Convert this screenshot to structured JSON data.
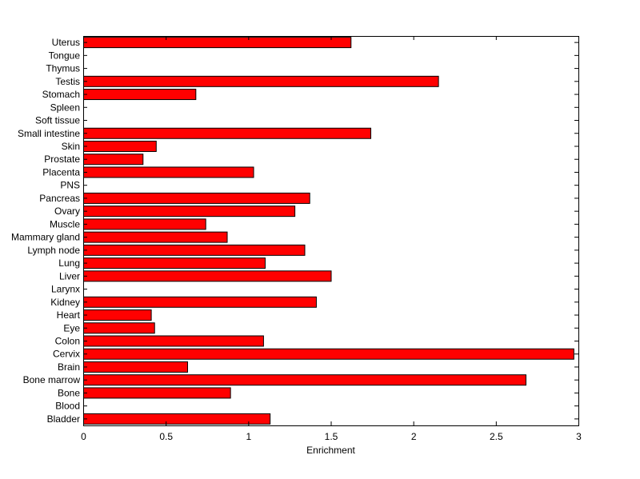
{
  "chart_data": {
    "type": "bar",
    "orientation": "horizontal",
    "title": "",
    "xlabel": "Enrichment",
    "ylabel": "",
    "xlim": [
      0,
      3
    ],
    "xticks": [
      "0",
      "0.5",
      "1",
      "1.5",
      "2",
      "2.5",
      "3"
    ],
    "grid": false,
    "bar_color": "#ff0000",
    "bar_edge_color": "#000000",
    "categories": [
      "Uterus",
      "Tongue",
      "Thymus",
      "Testis",
      "Stomach",
      "Spleen",
      "Soft tissue",
      "Small intestine",
      "Skin",
      "Prostate",
      "Placenta",
      "PNS",
      "Pancreas",
      "Ovary",
      "Muscle",
      "Mammary gland",
      "Lymph node",
      "Lung",
      "Liver",
      "Larynx",
      "Kidney",
      "Heart",
      "Eye",
      "Colon",
      "Cervix",
      "Brain",
      "Bone marrow",
      "Bone",
      "Blood",
      "Bladder"
    ],
    "values": [
      1.62,
      0,
      0,
      2.15,
      0.68,
      0,
      0,
      1.74,
      0.44,
      0.36,
      1.03,
      0,
      1.37,
      1.28,
      0.74,
      0.87,
      1.34,
      1.1,
      1.5,
      0,
      1.41,
      0.41,
      0.43,
      1.09,
      2.97,
      0.63,
      2.68,
      0.89,
      0,
      1.13
    ]
  }
}
